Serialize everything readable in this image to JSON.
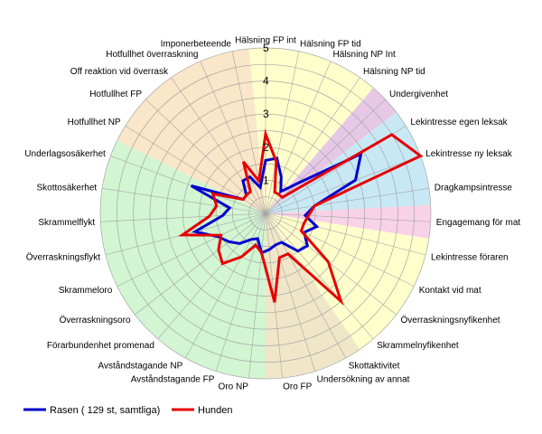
{
  "chart_data": {
    "type": "radar",
    "rmin": 0,
    "rmax": 5,
    "tick_values": [
      1,
      2,
      3,
      4,
      5
    ],
    "tick_labels": [
      "1",
      "2",
      "3",
      "4",
      "5"
    ],
    "grid": true,
    "legend_position": "bottom-left",
    "categories": [
      "Hälsning FP int",
      "Hälsning FP tid",
      "Hälsning NP Int",
      "Hälsning NP tid",
      "Undergivenhet",
      "Lekintresse egen leksak",
      "Lekintresse ny leksak",
      "Dragkampsintresse",
      "Engagemang för mat",
      "Lekintresse föraren",
      "Kontakt vid mat",
      "Överraskningsnyfikenhet",
      "Skrammelnyfikenhet",
      "Skottaktivitet",
      "Undersökning av annat",
      "Oro FP",
      "Oro NP",
      "Avståndstagande FP",
      "Avståndstagande NP",
      "Förarbundenhet promenad",
      "Överraskningsoro",
      "Skrammeloro",
      "Överraskningsflykt",
      "Skrammelflykt",
      "Skottosäkerhet",
      "Underlagsosäkerhet",
      "Hotfullhet NP",
      "Hotfullhet FP",
      "Off reaktion vid överrask",
      "Hotfullhet överraskning",
      "Imponerbeteende"
    ],
    "sectors": [
      {
        "from": 0,
        "to": 3,
        "color": "#ffffcc"
      },
      {
        "from": 4,
        "to": 4,
        "color": "#e6c8e6"
      },
      {
        "from": 5,
        "to": 7,
        "color": "#c8e8f5"
      },
      {
        "from": 8,
        "to": 8,
        "color": "#f8d2e6"
      },
      {
        "from": 9,
        "to": 12,
        "color": "#ffffcc"
      },
      {
        "from": 13,
        "to": 15,
        "color": "#f0e6c8"
      },
      {
        "from": 16,
        "to": 25,
        "color": "#d2f5d2"
      },
      {
        "from": 26,
        "to": 30,
        "color": "#fae6c8"
      }
    ],
    "series": [
      {
        "name": "Rasen ( 129 st, samtliga)",
        "color": "#0000cc",
        "values": [
          1.6,
          1.7,
          1.2,
          0.8,
          1.3,
          3.4,
          2.9,
          1.5,
          1.2,
          1.6,
          1.3,
          1.6,
          1.5,
          1.0,
          1.0,
          1.1,
          1.2,
          0.8,
          0.9,
          1.2,
          1.4,
          1.6,
          2.2,
          1.3,
          1.1,
          2.4,
          0.8,
          0.8,
          1.2,
          1.2,
          0.8
        ]
      },
      {
        "name": "Hunden",
        "color": "#e60000",
        "values": [
          2.4,
          1.6,
          0.7,
          0.7,
          0.7,
          4.5,
          5.0,
          1.5,
          1.3,
          1.2,
          1.2,
          2.4,
          3.5,
          1.4,
          1.4,
          2.7,
          1.2,
          1.0,
          1.5,
          2.0,
          1.8,
          1.5,
          2.6,
          1.7,
          1.5,
          1.7,
          0.8,
          0.8,
          0.8,
          1.7,
          1.0
        ]
      }
    ]
  }
}
